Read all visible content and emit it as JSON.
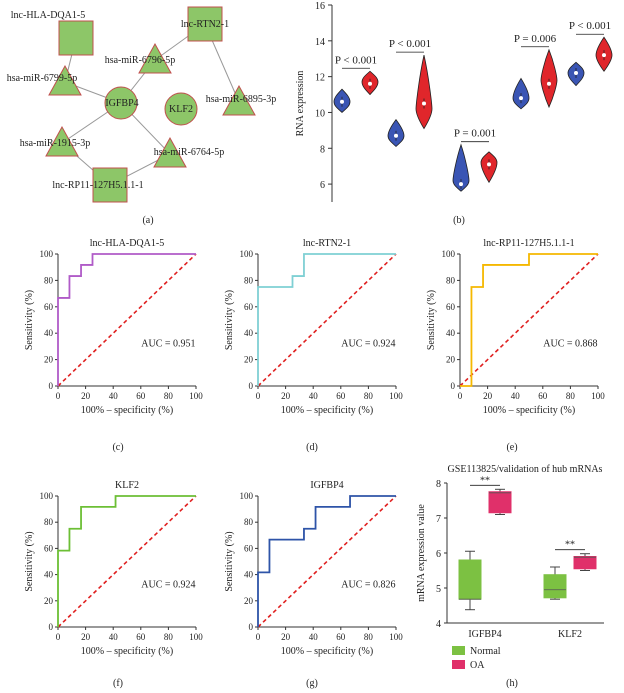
{
  "panels": {
    "a": "(a)",
    "b": "(b)",
    "c": "(c)",
    "d": "(d)",
    "e": "(e)",
    "f": "(f)",
    "g": "(g)",
    "h": "(h)"
  },
  "network": {
    "nodes": [
      {
        "id": "lnc-HLA-DQA1-5",
        "shape": "square"
      },
      {
        "id": "lnc-RTN2-1",
        "shape": "square"
      },
      {
        "id": "hsa-miR-6796-5p",
        "shape": "triangle"
      },
      {
        "id": "hsa-miR-6799-5p",
        "shape": "triangle"
      },
      {
        "id": "IGFBP4",
        "shape": "circle"
      },
      {
        "id": "KLF2",
        "shape": "circle"
      },
      {
        "id": "hsa-miR-6895-3p",
        "shape": "triangle"
      },
      {
        "id": "hsa-miR-1915-3p",
        "shape": "triangle"
      },
      {
        "id": "hsa-miR-6764-5p",
        "shape": "triangle"
      },
      {
        "id": "lnc-RP11-127H5.1.1-1",
        "shape": "square"
      }
    ],
    "edges": [
      [
        "lnc-HLA-DQA1-5",
        "hsa-miR-6799-5p"
      ],
      [
        "hsa-miR-6799-5p",
        "IGFBP4"
      ],
      [
        "lnc-RTN2-1",
        "hsa-miR-6796-5p"
      ],
      [
        "hsa-miR-6796-5p",
        "IGFBP4"
      ],
      [
        "lnc-RTN2-1",
        "hsa-miR-6895-3p"
      ],
      [
        "IGFBP4",
        "hsa-miR-1915-3p"
      ],
      [
        "IGFBP4",
        "hsa-miR-6764-5p"
      ],
      [
        "hsa-miR-1915-3p",
        "lnc-RP11-127H5.1.1-1"
      ],
      [
        "hsa-miR-6764-5p",
        "lnc-RP11-127H5.1.1-1"
      ]
    ]
  },
  "colors": {
    "node_fill": "#8dc668",
    "node_stroke": "#c0504d",
    "edge": "#999999",
    "violin_blue": "#3a55b4",
    "violin_red": "#e0262b",
    "roc_c": "#b05bc8",
    "roc_d": "#7fd0d4",
    "roc_e": "#f5b800",
    "roc_f": "#6cbf35",
    "roc_g": "#2e54a8",
    "ref": "#e02020",
    "box_normal": "#7cc142",
    "box_oa": "#e0306a"
  },
  "chart_data": [
    {
      "panel": "b",
      "type": "violin",
      "ylabel": "RNA expression",
      "ylim": [
        5,
        16
      ],
      "yticks": [
        6,
        8,
        10,
        12,
        14,
        16
      ],
      "pairs": [
        {
          "p": "P < 0.001",
          "blue": {
            "min": 10.0,
            "max": 11.3,
            "median": 10.6,
            "mode": 10.6
          },
          "red": {
            "min": 11.0,
            "max": 12.3,
            "median": 11.6,
            "mode": 11.7
          }
        },
        {
          "p": "P < 0.001",
          "blue": {
            "min": 8.1,
            "max": 9.6,
            "median": 8.7,
            "mode": 8.7
          },
          "red": {
            "min": 9.1,
            "max": 13.2,
            "median": 10.5,
            "mode": 10.2
          }
        },
        {
          "p": "P = 0.001",
          "blue": {
            "min": 5.6,
            "max": 8.2,
            "median": 6.0,
            "mode": 6.2
          },
          "red": {
            "min": 6.1,
            "max": 7.8,
            "median": 7.1,
            "mode": 7.2
          }
        },
        {
          "p": "P = 0.006",
          "blue": {
            "min": 10.2,
            "max": 11.9,
            "median": 10.8,
            "mode": 10.8
          },
          "red": {
            "min": 10.3,
            "max": 13.5,
            "median": 11.6,
            "mode": 11.8
          }
        },
        {
          "p": "P < 0.001",
          "blue": {
            "min": 11.5,
            "max": 12.8,
            "median": 12.2,
            "mode": 12.2
          },
          "red": {
            "min": 12.3,
            "max": 14.2,
            "median": 13.2,
            "mode": 13.2
          }
        }
      ]
    },
    {
      "panel": "c",
      "type": "line",
      "title": "lnc-HLA-DQA1-5",
      "xlabel": "100% – specificity (%)",
      "ylabel": "Sensitivity (%)",
      "auc": "AUC = 0.951",
      "xlim": [
        0,
        100
      ],
      "ylim": [
        0,
        100
      ],
      "ticks": [
        0,
        20,
        40,
        60,
        80,
        100
      ],
      "roc": [
        [
          0,
          0
        ],
        [
          0,
          66.7
        ],
        [
          8.3,
          66.7
        ],
        [
          8.3,
          83.3
        ],
        [
          16.7,
          83.3
        ],
        [
          16.7,
          91.7
        ],
        [
          25,
          91.7
        ],
        [
          25,
          100
        ],
        [
          100,
          100
        ]
      ]
    },
    {
      "panel": "d",
      "type": "line",
      "title": "lnc-RTN2-1",
      "xlabel": "100% – specificity (%)",
      "ylabel": "Sensitivity (%)",
      "auc": "AUC = 0.924",
      "xlim": [
        0,
        100
      ],
      "ylim": [
        0,
        100
      ],
      "ticks": [
        0,
        20,
        40,
        60,
        80,
        100
      ],
      "roc": [
        [
          0,
          0
        ],
        [
          0,
          75
        ],
        [
          25,
          75
        ],
        [
          25,
          83.3
        ],
        [
          33.3,
          83.3
        ],
        [
          33.3,
          100
        ],
        [
          100,
          100
        ]
      ]
    },
    {
      "panel": "e",
      "type": "line",
      "title": "lnc-RP11-127H5.1.1-1",
      "xlabel": "100% – specificity (%)",
      "ylabel": "Sensitivity (%)",
      "auc": "AUC = 0.868",
      "xlim": [
        0,
        100
      ],
      "ylim": [
        0,
        100
      ],
      "ticks": [
        0,
        20,
        40,
        60,
        80,
        100
      ],
      "roc": [
        [
          0,
          0
        ],
        [
          8.3,
          0
        ],
        [
          8.3,
          75
        ],
        [
          16.7,
          75
        ],
        [
          16.7,
          91.7
        ],
        [
          50,
          91.7
        ],
        [
          50,
          100
        ],
        [
          100,
          100
        ]
      ]
    },
    {
      "panel": "f",
      "type": "line",
      "title": "KLF2",
      "xlabel": "100% – specificity (%)",
      "ylabel": "Sensitivity (%)",
      "auc": "AUC = 0.924",
      "xlim": [
        0,
        100
      ],
      "ylim": [
        0,
        100
      ],
      "ticks": [
        0,
        20,
        40,
        60,
        80,
        100
      ],
      "roc": [
        [
          0,
          0
        ],
        [
          0,
          58.3
        ],
        [
          8.3,
          58.3
        ],
        [
          8.3,
          75
        ],
        [
          16.7,
          75
        ],
        [
          16.7,
          91.7
        ],
        [
          41.7,
          91.7
        ],
        [
          41.7,
          100
        ],
        [
          100,
          100
        ]
      ]
    },
    {
      "panel": "g",
      "type": "line",
      "title": "IGFBP4",
      "xlabel": "100% – specificity (%)",
      "ylabel": "Sensitivity (%)",
      "auc": "AUC = 0.826",
      "xlim": [
        0,
        100
      ],
      "ylim": [
        0,
        100
      ],
      "ticks": [
        0,
        20,
        40,
        60,
        80,
        100
      ],
      "roc": [
        [
          0,
          0
        ],
        [
          0,
          41.7
        ],
        [
          8.3,
          41.7
        ],
        [
          8.3,
          66.7
        ],
        [
          33.3,
          66.7
        ],
        [
          33.3,
          75
        ],
        [
          41.7,
          75
        ],
        [
          41.7,
          91.7
        ],
        [
          66.7,
          91.7
        ],
        [
          66.7,
          100
        ],
        [
          100,
          100
        ]
      ]
    },
    {
      "panel": "h",
      "type": "box",
      "title": "GSE113825/validation of hub mRNAs",
      "ylabel": "mRNA expression value",
      "ylim": [
        4,
        8
      ],
      "yticks": [
        4,
        5,
        6,
        7,
        8
      ],
      "categories": [
        "IGFBP4",
        "KLF2"
      ],
      "series": [
        {
          "name": "Normal",
          "boxes": [
            {
              "min": 4.38,
              "q1": 4.68,
              "median": 4.68,
              "q3": 5.8,
              "max": 6.05
            },
            {
              "min": 4.68,
              "q1": 4.72,
              "median": 4.95,
              "q3": 5.38,
              "max": 5.6
            }
          ]
        },
        {
          "name": "OA",
          "boxes": [
            {
              "min": 7.1,
              "q1": 7.15,
              "median": 7.72,
              "q3": 7.75,
              "max": 7.82
            },
            {
              "min": 5.5,
              "q1": 5.55,
              "median": 5.88,
              "q3": 5.9,
              "max": 5.98
            }
          ]
        }
      ],
      "significance": [
        "**",
        "**"
      ],
      "legend": [
        "Normal",
        "OA"
      ]
    }
  ]
}
